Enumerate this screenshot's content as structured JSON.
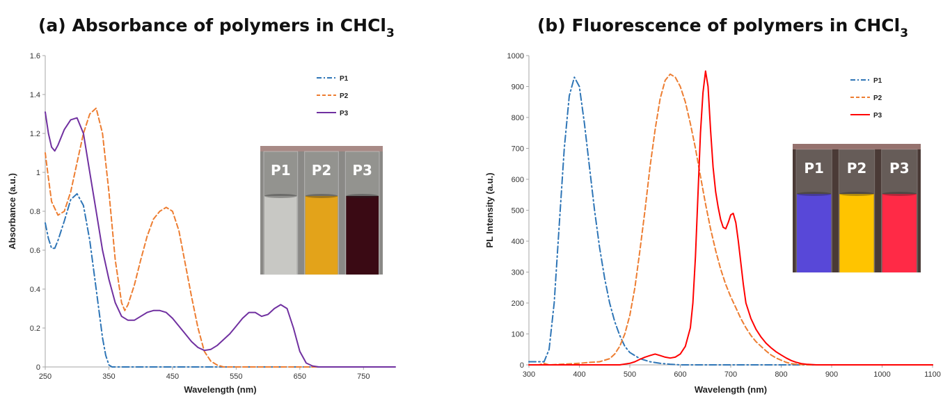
{
  "colors": {
    "P1": "#2E75B6",
    "P2": "#ED7D31",
    "P3_abs": "#7030A0",
    "P3_pl": "#FF0000",
    "axis": "#A6A6A6"
  },
  "chart_data": [
    {
      "type": "line",
      "panel_label": "(a)",
      "title": "Absorbance of polymers in CHCl",
      "title_subscript": "3",
      "xlabel": "Wavelength (nm)",
      "ylabel": "Absorbance (a.u.)",
      "xlim": [
        250,
        800
      ],
      "ylim": [
        0,
        1.6
      ],
      "xticks": [
        "250",
        "350",
        "450",
        "550",
        "650",
        "750"
      ],
      "xtick_values": [
        250,
        350,
        450,
        550,
        650,
        750
      ],
      "yticks": [
        "0",
        "0.2",
        "0.4",
        "0.6",
        "0.8",
        "1",
        "1.2",
        "1.4",
        "1.6"
      ],
      "ytick_values": [
        0,
        0.2,
        0.4,
        0.6,
        0.8,
        1.0,
        1.2,
        1.4,
        1.6
      ],
      "grid": false,
      "legend_position": "top-right",
      "inset": {
        "description": "photo of vials",
        "labels": [
          "P1",
          "P2",
          "P3"
        ],
        "liquid_colors": [
          "#c8c8c4",
          "#e3a31a",
          "#3a0a14"
        ],
        "backdrop": "#8a8986"
      },
      "series": [
        {
          "name": "P1",
          "style": "dashdot",
          "x": [
            250,
            255,
            260,
            265,
            270,
            280,
            290,
            300,
            310,
            320,
            330,
            340,
            345,
            350,
            355,
            360,
            400,
            500,
            600,
            800
          ],
          "y": [
            0.74,
            0.66,
            0.61,
            0.61,
            0.65,
            0.75,
            0.86,
            0.89,
            0.83,
            0.65,
            0.4,
            0.15,
            0.06,
            0.01,
            0,
            0,
            0,
            0,
            0,
            0
          ]
        },
        {
          "name": "P2",
          "style": "dashed",
          "x": [
            250,
            255,
            260,
            270,
            280,
            290,
            300,
            310,
            320,
            330,
            340,
            350,
            360,
            370,
            375,
            380,
            390,
            400,
            410,
            420,
            430,
            440,
            450,
            460,
            470,
            480,
            490,
            500,
            510,
            520,
            530,
            550,
            600,
            700,
            800
          ],
          "y": [
            1.1,
            0.97,
            0.85,
            0.78,
            0.8,
            0.9,
            1.05,
            1.2,
            1.3,
            1.33,
            1.2,
            0.9,
            0.55,
            0.33,
            0.29,
            0.32,
            0.42,
            0.55,
            0.67,
            0.76,
            0.8,
            0.82,
            0.8,
            0.7,
            0.53,
            0.36,
            0.2,
            0.08,
            0.03,
            0.01,
            0,
            0,
            0,
            0,
            0
          ]
        },
        {
          "name": "P3",
          "style": "solid",
          "x": [
            250,
            255,
            260,
            265,
            270,
            280,
            290,
            300,
            310,
            320,
            330,
            340,
            350,
            360,
            370,
            380,
            390,
            400,
            410,
            420,
            430,
            440,
            450,
            460,
            470,
            480,
            490,
            500,
            510,
            520,
            530,
            540,
            550,
            560,
            570,
            580,
            590,
            600,
            610,
            620,
            630,
            640,
            650,
            660,
            670,
            680,
            700,
            800
          ],
          "y": [
            1.31,
            1.2,
            1.13,
            1.11,
            1.14,
            1.22,
            1.27,
            1.28,
            1.2,
            1.0,
            0.8,
            0.6,
            0.45,
            0.33,
            0.26,
            0.24,
            0.24,
            0.26,
            0.28,
            0.29,
            0.29,
            0.28,
            0.25,
            0.21,
            0.17,
            0.13,
            0.1,
            0.085,
            0.09,
            0.11,
            0.14,
            0.17,
            0.21,
            0.25,
            0.28,
            0.28,
            0.26,
            0.27,
            0.3,
            0.32,
            0.3,
            0.2,
            0.08,
            0.02,
            0.005,
            0,
            0,
            0
          ]
        }
      ]
    },
    {
      "type": "line",
      "panel_label": "(b)",
      "title": "Fluorescence of polymers in CHCl",
      "title_subscript": "3",
      "xlabel": "Wavelength (nm)",
      "ylabel": "PL Intensity (a.u.)",
      "xlim": [
        300,
        1100
      ],
      "ylim": [
        0,
        1000
      ],
      "xticks": [
        "300",
        "400",
        "500",
        "600",
        "700",
        "800",
        "900",
        "1000",
        "1100"
      ],
      "xtick_values": [
        300,
        400,
        500,
        600,
        700,
        800,
        900,
        1000,
        1100
      ],
      "yticks": [
        "0",
        "100",
        "200",
        "300",
        "400",
        "500",
        "600",
        "700",
        "800",
        "900",
        "1000"
      ],
      "ytick_values": [
        0,
        100,
        200,
        300,
        400,
        500,
        600,
        700,
        800,
        900,
        1000
      ],
      "grid": false,
      "legend_position": "top-right",
      "inset": {
        "description": "photo of fluorescing vials",
        "labels": [
          "P1",
          "P2",
          "P3"
        ],
        "liquid_colors": [
          "#5848d8",
          "#ffc400",
          "#ff2a46"
        ],
        "backdrop": "#4a3a36"
      },
      "series": [
        {
          "name": "P1",
          "style": "dashdot",
          "x": [
            300,
            330,
            340,
            350,
            360,
            370,
            380,
            390,
            400,
            410,
            420,
            430,
            440,
            450,
            460,
            470,
            480,
            490,
            500,
            520,
            540,
            560,
            580,
            600,
            700,
            1100
          ],
          "y": [
            10,
            10,
            50,
            200,
            450,
            700,
            870,
            930,
            900,
            780,
            640,
            500,
            380,
            280,
            200,
            140,
            95,
            60,
            40,
            20,
            10,
            5,
            2,
            0,
            0,
            0
          ]
        },
        {
          "name": "P2",
          "style": "dashed",
          "x": [
            300,
            320,
            330,
            340,
            400,
            420,
            440,
            460,
            470,
            480,
            490,
            500,
            510,
            520,
            530,
            540,
            550,
            560,
            570,
            580,
            590,
            600,
            610,
            620,
            630,
            640,
            650,
            660,
            670,
            680,
            690,
            700,
            710,
            720,
            730,
            740,
            750,
            760,
            770,
            780,
            790,
            800,
            810,
            820,
            830,
            850,
            900,
            1100
          ],
          "y": [
            0,
            0,
            5,
            0,
            5,
            8,
            10,
            20,
            35,
            60,
            100,
            160,
            250,
            370,
            500,
            640,
            760,
            860,
            920,
            940,
            930,
            900,
            850,
            780,
            700,
            610,
            520,
            440,
            370,
            310,
            260,
            220,
            185,
            150,
            120,
            95,
            75,
            60,
            45,
            32,
            22,
            15,
            8,
            4,
            2,
            0,
            0,
            0
          ]
        },
        {
          "name": "P3",
          "style": "solid",
          "x": [
            300,
            480,
            500,
            510,
            520,
            530,
            540,
            550,
            560,
            570,
            580,
            590,
            600,
            610,
            620,
            625,
            630,
            635,
            640,
            645,
            650,
            655,
            660,
            665,
            670,
            675,
            680,
            685,
            690,
            695,
            700,
            705,
            710,
            715,
            720,
            725,
            730,
            740,
            750,
            760,
            770,
            780,
            790,
            800,
            810,
            820,
            830,
            840,
            850,
            870,
            900,
            1100
          ],
          "y": [
            0,
            0,
            5,
            10,
            18,
            25,
            30,
            35,
            30,
            25,
            22,
            25,
            35,
            60,
            120,
            200,
            350,
            550,
            750,
            880,
            950,
            900,
            760,
            640,
            560,
            510,
            470,
            445,
            440,
            460,
            485,
            490,
            460,
            400,
            330,
            260,
            200,
            150,
            115,
            90,
            70,
            55,
            42,
            32,
            22,
            14,
            8,
            4,
            2,
            0,
            0,
            0
          ]
        }
      ]
    }
  ]
}
